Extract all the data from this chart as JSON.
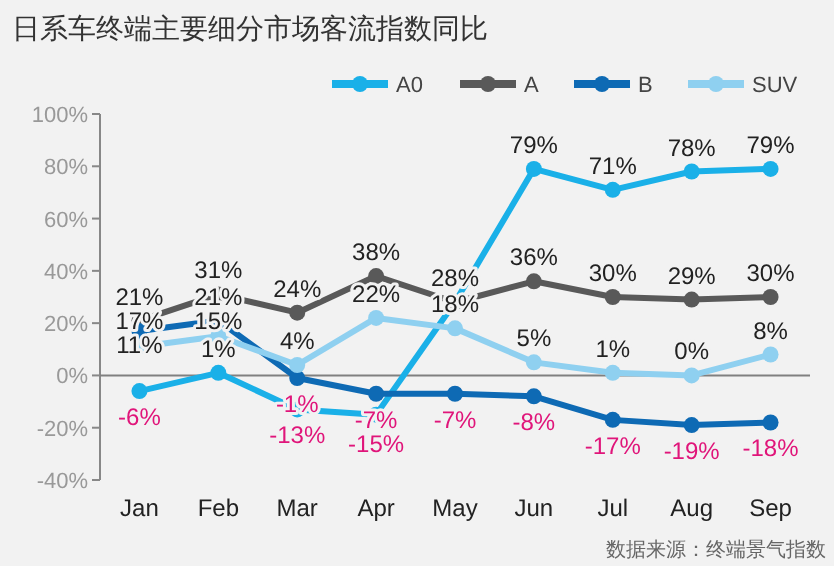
{
  "chart_data": {
    "type": "line",
    "title": "日系车终端主要细分市场客流指数同比",
    "categories": [
      "Jan",
      "Feb",
      "Mar",
      "Apr",
      "May",
      "Jun",
      "Jul",
      "Aug",
      "Sep"
    ],
    "series": [
      {
        "name": "A0",
        "color": "#1ab0e8",
        "values": [
          -6,
          1,
          -13,
          -15,
          28,
          79,
          71,
          78,
          79
        ],
        "value_labels": [
          "-6%",
          "1%",
          "-13%",
          "-15%",
          null,
          "79%",
          "71%",
          "78%",
          "79%"
        ]
      },
      {
        "name": "A",
        "color": "#595959",
        "values": [
          21,
          31,
          24,
          38,
          28,
          36,
          30,
          29,
          30
        ],
        "value_labels": [
          "21%",
          "31%",
          "24%",
          "38%",
          "28%",
          "36%",
          "30%",
          "29%",
          "30%"
        ]
      },
      {
        "name": "B",
        "color": "#0e6ab4",
        "values": [
          17,
          21,
          -1,
          -7,
          -7,
          -8,
          -17,
          -19,
          -18
        ],
        "value_labels": [
          "17%",
          "21%",
          "-1%",
          "-7%",
          "-7%",
          "-8%",
          "-17%",
          "-19%",
          "-18%"
        ]
      },
      {
        "name": "SUV",
        "color": "#8fd0f0",
        "values": [
          11,
          15,
          4,
          22,
          18,
          5,
          1,
          0,
          8
        ],
        "value_labels": [
          "11%",
          "15%",
          "4%",
          "22%",
          "18%",
          "5%",
          "1%",
          "0%",
          "8%"
        ]
      }
    ],
    "ylim": [
      -40,
      100
    ],
    "yticks": [
      {
        "value": -40,
        "label": "-40%"
      },
      {
        "value": -20,
        "label": "-20%"
      },
      {
        "value": 0,
        "label": "0%"
      },
      {
        "value": 20,
        "label": "20%"
      },
      {
        "value": 40,
        "label": "40%"
      },
      {
        "value": 60,
        "label": "60%"
      },
      {
        "value": 80,
        "label": "80%"
      },
      {
        "value": 100,
        "label": "100%"
      }
    ],
    "ref_lines": [
      {
        "axis": "y",
        "value": 0,
        "color": "#808080"
      }
    ],
    "legend": "top right",
    "marker": "circle",
    "line_style": "solid",
    "grid": false,
    "annotations": [
      "数据来源：终端景气指数"
    ]
  }
}
